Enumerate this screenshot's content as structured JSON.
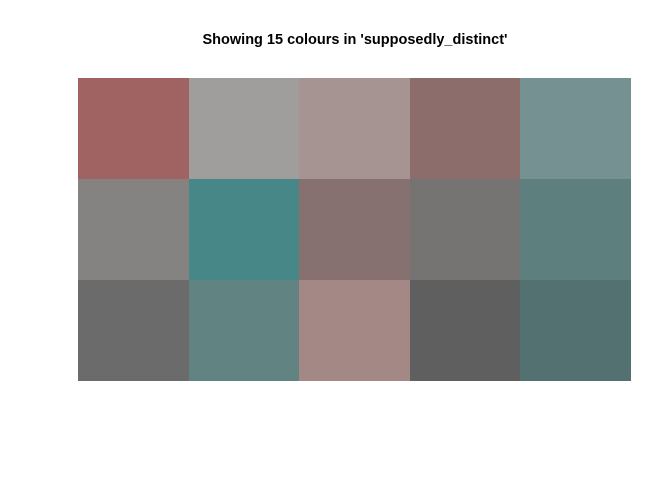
{
  "chart_data": {
    "type": "heatmap",
    "title": "Showing 15 colours in 'supposedly_distinct'",
    "xlabel": "",
    "ylabel": "",
    "rows": 3,
    "columns": 5,
    "grid": false,
    "cells": [
      [
        "#A16361",
        "#9F9E9C",
        "#A69492",
        "#8D6D6B",
        "#769192"
      ],
      [
        "#858381",
        "#488787",
        "#867170",
        "#757473",
        "#5D807E"
      ],
      [
        "#6B6B6B",
        "#618381",
        "#A48885",
        "#5F5F5F",
        "#527170"
      ]
    ]
  }
}
